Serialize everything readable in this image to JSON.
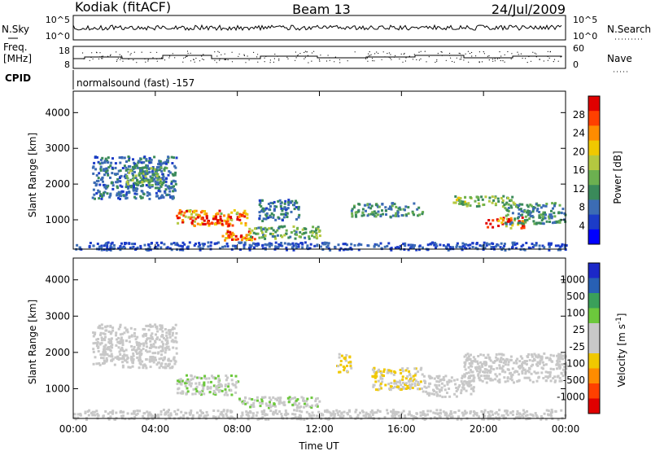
{
  "header": {
    "station": "Kodiak (fitACF)",
    "beam": "Beam 13",
    "date": "24/Jul/2009"
  },
  "top_panels": {
    "nsky_label": "N.Sky",
    "nsky_ticks": [
      "10^5",
      "10^0"
    ],
    "nsearch_label": "N.Search",
    "nsearch_ticks": [
      "10^5",
      "10^0"
    ],
    "freq_label_1": "Freq.",
    "freq_label_2": "[MHz]",
    "freq_ticks": [
      "18",
      "8"
    ],
    "nave_label": "Nave",
    "nave_ticks": [
      "60",
      "0"
    ],
    "cpid_label": "CPID",
    "cpid_text": "normalsound (fast) -157"
  },
  "chart_data": [
    {
      "type": "heatmap",
      "name": "power",
      "ylabel": "Slant Range [km]",
      "yticks": [
        "4000",
        "3000",
        "2000",
        "1000"
      ],
      "ylim": [
        180,
        4600
      ],
      "xlim": [
        "00:00",
        "24:00"
      ],
      "colorbar": {
        "label": "Power [dB]",
        "ticks": [
          "28",
          "24",
          "20",
          "16",
          "12",
          "8",
          "4"
        ],
        "range": [
          0,
          30
        ],
        "colors": [
          "#0000ff",
          "#1c3cc8",
          "#3c6cb4",
          "#3a8a5a",
          "#6cb050",
          "#b4c840",
          "#f0c800",
          "#ff8c00",
          "#ff4000",
          "#e00000"
        ]
      },
      "regions": [
        {
          "t": [
            0.9,
            5.0
          ],
          "r": [
            1600,
            2800
          ],
          "v": 8
        },
        {
          "t": [
            2.5,
            4.5
          ],
          "r": [
            2000,
            2500
          ],
          "v": 12
        },
        {
          "t": [
            5.0,
            8.5
          ],
          "r": [
            850,
            1300
          ],
          "v": 22
        },
        {
          "t": [
            6.0,
            7.2
          ],
          "r": [
            900,
            1150
          ],
          "v": 28
        },
        {
          "t": [
            7.2,
            8.8
          ],
          "r": [
            450,
            750
          ],
          "v": 25
        },
        {
          "t": [
            8.5,
            12.0
          ],
          "r": [
            500,
            850
          ],
          "v": 12
        },
        {
          "t": [
            9.0,
            11.0
          ],
          "r": [
            1000,
            1600
          ],
          "v": 8
        },
        {
          "t": [
            13.5,
            17.0
          ],
          "r": [
            1100,
            1500
          ],
          "v": 10
        },
        {
          "t": [
            18.5,
            21.5
          ],
          "r": [
            1400,
            1700
          ],
          "v": 14
        },
        {
          "t": [
            20.0,
            22.0
          ],
          "r": [
            800,
            1100
          ],
          "v": 24
        },
        {
          "t": [
            21.0,
            24.0
          ],
          "r": [
            900,
            1500
          ],
          "v": 10
        },
        {
          "t": [
            0.0,
            24.0
          ],
          "r": [
            180,
            400
          ],
          "v": 6
        }
      ]
    },
    {
      "type": "heatmap",
      "name": "velocity",
      "ylabel": "Slant Range [km]",
      "yticks": [
        "4000",
        "3000",
        "2000",
        "1000"
      ],
      "ylim": [
        180,
        4600
      ],
      "xlim": [
        "00:00",
        "24:00"
      ],
      "xlabel": "Time UT",
      "xticks": [
        "00:00",
        "04:00",
        "08:00",
        "12:00",
        "16:00",
        "20:00",
        "00:00"
      ],
      "colorbar": {
        "label": "Velocity [m s-1]",
        "ticks": [
          "1000",
          "500",
          "100",
          "25",
          "-25",
          "-100",
          "-500",
          "-1000"
        ],
        "range": [
          -1000,
          1000
        ],
        "colors": [
          "#e00000",
          "#ff4000",
          "#ff8c00",
          "#f0c800",
          "#c8c8c8",
          "#c8c8c8",
          "#6cc83c",
          "#3aa05a",
          "#2860b4",
          "#1c28c8"
        ]
      },
      "regions": [
        {
          "t": [
            0.9,
            5.0
          ],
          "r": [
            1600,
            2800
          ],
          "v": 20
        },
        {
          "t": [
            5.0,
            8.0
          ],
          "r": [
            850,
            1400
          ],
          "v": 180
        },
        {
          "t": [
            8.0,
            12.0
          ],
          "r": [
            500,
            800
          ],
          "v": 150
        },
        {
          "t": [
            12.8,
            13.5
          ],
          "r": [
            1400,
            2000
          ],
          "v": -250
        },
        {
          "t": [
            14.5,
            17.0
          ],
          "r": [
            1000,
            1600
          ],
          "v": -200
        },
        {
          "t": [
            17.0,
            19.5
          ],
          "r": [
            800,
            1400
          ],
          "v": -80
        },
        {
          "t": [
            19.0,
            24.0
          ],
          "r": [
            1200,
            2000
          ],
          "v": 10
        },
        {
          "t": [
            0.0,
            24.0
          ],
          "r": [
            180,
            450
          ],
          "v": 60
        }
      ]
    }
  ]
}
